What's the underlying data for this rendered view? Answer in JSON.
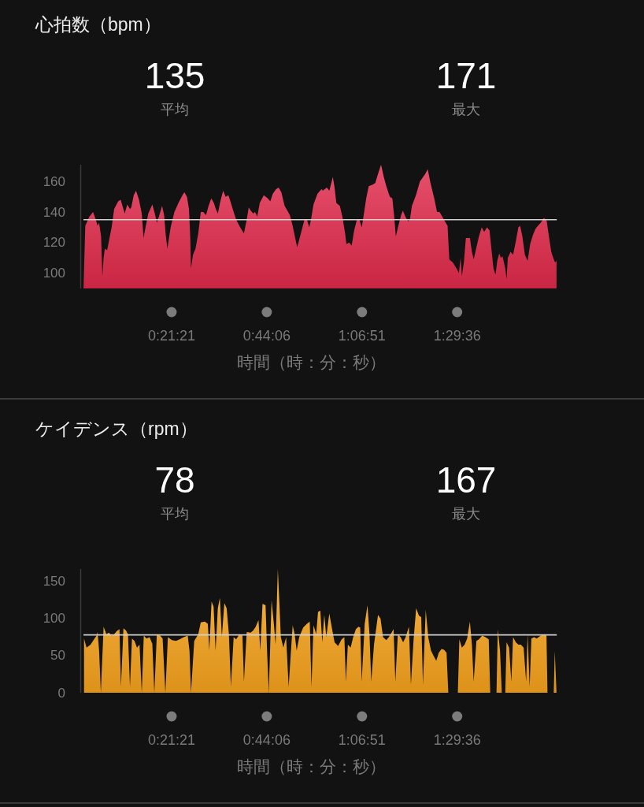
{
  "chart_data": [
    {
      "type": "area",
      "title": "心拍数（bpm）",
      "xlabel": "時間（時：分：秒）",
      "annotations": [
        "135",
        "平均",
        "171",
        "最大"
      ],
      "x": [
        0.005,
        0.012,
        0.028,
        0.043,
        0.054,
        0.061,
        0.067,
        0.075,
        0.08,
        0.085,
        0.09,
        0.099,
        0.106,
        0.117,
        0.127,
        0.143,
        0.153,
        0.162,
        0.169,
        0.179,
        0.19,
        0.195,
        0.205,
        0.214,
        0.226,
        0.237,
        0.244,
        0.252,
        0.263,
        0.279,
        0.289,
        0.297,
        0.305,
        0.318,
        0.326,
        0.333,
        0.339,
        0.352,
        0.367,
        0.383,
        0.399,
        0.407,
        0.417,
        0.425,
        0.43,
        0.433,
        0.441,
        0.451,
        0.462,
        0.472,
        0.482,
        0.493,
        0.503,
        0.514,
        0.524,
        0.532,
        0.54,
        0.55,
        0.561,
        0.571,
        0.582,
        0.592,
        0.603,
        0.613,
        0.629,
        0.644,
        0.655,
        0.663,
        0.671,
        0.681,
        0.688,
        0.697,
        0.707,
        0.723,
        0.739,
        0.749,
        0.759,
        0.772,
        0.782,
        0.793,
        0.806,
        0.817,
        0.827,
        0.838,
        0.848,
        0.856,
        0.869,
        0.885,
        0.895,
        0.904,
        0.911,
        0.921,
        0.937,
        0.953,
        0.958,
        0.974,
        0.984,
        0.992,
        0.998,
        1.005,
        1.012,
        1.026,
        1.036,
        1.047,
        1.052,
        1.063,
        1.073,
        1.083,
        1.094,
        1.104,
        1.113,
        1.12,
        1.131,
        1.141,
        1.157,
        1.167,
        1.178,
        1.19,
        1.201,
        1.211,
        1.225,
        1.235,
        1.242,
        1.249,
        1.259,
        1.27,
        1.277,
        1.287,
        1.298,
        1.305,
        1.313,
        1.329,
        1.345,
        1.366,
        1.376,
        1.387,
        1.402,
        1.413,
        1.423,
        1.434,
        1.444,
        1.455,
        1.462,
        1.476,
        1.491,
        1.5,
        1.507,
        1.512,
        1.52,
        1.528,
        1.544,
        1.552,
        1.559,
        1.57,
        1.58,
        1.591,
        1.601,
        1.612,
        1.622,
        1.629,
        1.638,
        1.646,
        1.653,
        1.661,
        1.667,
        1.674,
        1.685,
        1.69,
        1.695,
        1.706,
        1.716,
        1.727,
        1.737,
        1.744,
        1.753,
        1.763,
        1.774,
        1.784,
        1.795,
        1.805,
        1.815,
        1.826,
        1.838,
        1.849,
        1.857,
        1.868,
        1.876,
        1.883,
        1.889
      ],
      "series": [
        {
          "color": "#e02a4a",
          "values": [
            90,
            131,
            137,
            140,
            135,
            131,
            133,
            124,
            98,
            110,
            116,
            115,
            121,
            130,
            142,
            147,
            148,
            143,
            139,
            145,
            142,
            143,
            151,
            154,
            148,
            139,
            123,
            130,
            139,
            145,
            139,
            133,
            137,
            144,
            138,
            124,
            116,
            130,
            140,
            146,
            151,
            153,
            150,
            142,
            124,
            103,
            112,
            116,
            126,
            140,
            140,
            138,
            144,
            149,
            146,
            142,
            139,
            147,
            154,
            150,
            151,
            146,
            140,
            135,
            130,
            126,
            135,
            143,
            141,
            139,
            140,
            137,
            146,
            151,
            149,
            147,
            152,
            155,
            156,
            153,
            144,
            141,
            138,
            131,
            123,
            117,
            125,
            135,
            135,
            130,
            135,
            145,
            152,
            155,
            154,
            156,
            154,
            159,
            163,
            156,
            146,
            144,
            137,
            126,
            119,
            120,
            118,
            128,
            135,
            135,
            130,
            137,
            149,
            157,
            158,
            159,
            165,
            171,
            163,
            157,
            150,
            149,
            138,
            124,
            131,
            138,
            141,
            137,
            134,
            135,
            144,
            151,
            160,
            165,
            168,
            159,
            149,
            140,
            140,
            137,
            134,
            131,
            109,
            107,
            103,
            100,
            110,
            98,
            107,
            123,
            123,
            114,
            109,
            117,
            124,
            130,
            127,
            130,
            128,
            117,
            103,
            99,
            108,
            113,
            110,
            111,
            103,
            96,
            110,
            114,
            112,
            121,
            130,
            131,
            124,
            112,
            108,
            119,
            125,
            129,
            131,
            133,
            136,
            135,
            126,
            114,
            110,
            107,
            108
          ]
        }
      ],
      "xlim": [
        0,
        1.89
      ],
      "ylim": [
        90,
        171
      ],
      "xticks": [
        {
          "value": 0.355833,
          "label": "0:21:21"
        },
        {
          "value": 0.735,
          "label": "0:44:06"
        },
        {
          "value": 1.114167,
          "label": "1:06:51"
        },
        {
          "value": 1.493333,
          "label": "1:29:36"
        }
      ],
      "yticks": [
        100,
        120,
        140,
        160
      ],
      "ref_lines": [
        {
          "axis": "y",
          "value": 135,
          "color": "#d0d0d0"
        }
      ]
    },
    {
      "type": "area",
      "title": "ケイデンス（rpm）",
      "xlabel": "時間（時：分：秒）",
      "annotations": [
        "78",
        "平均",
        "167",
        "最大"
      ],
      "x": [
        0.007,
        0.017,
        0.033,
        0.049,
        0.057,
        0.061,
        0.067,
        0.074,
        0.085,
        0.096,
        0.106,
        0.117,
        0.127,
        0.137,
        0.148,
        0.154,
        0.164,
        0.174,
        0.182,
        0.19,
        0.198,
        0.208,
        0.218,
        0.228,
        0.237,
        0.245,
        0.256,
        0.268,
        0.279,
        0.287,
        0.297,
        0.31,
        0.32,
        0.331,
        0.341,
        0.357,
        0.373,
        0.388,
        0.404,
        0.42,
        0.427,
        0.433,
        0.446,
        0.462,
        0.472,
        0.488,
        0.5,
        0.506,
        0.515,
        0.523,
        0.531,
        0.54,
        0.548,
        0.556,
        0.566,
        0.575,
        0.584,
        0.592,
        0.603,
        0.613,
        0.626,
        0.638,
        0.644,
        0.655,
        0.671,
        0.681,
        0.691,
        0.702,
        0.709,
        0.718,
        0.73,
        0.736,
        0.743,
        0.754,
        0.763,
        0.77,
        0.779,
        0.791,
        0.801,
        0.812,
        0.822,
        0.838,
        0.846,
        0.854,
        0.864,
        0.88,
        0.895,
        0.906,
        0.913,
        0.921,
        0.932,
        0.939,
        0.948,
        0.956,
        0.964,
        0.972,
        0.984,
        0.995,
        1.005,
        1.019,
        1.033,
        1.044,
        1.05,
        1.058,
        1.069,
        1.079,
        1.09,
        1.1,
        1.107,
        1.113,
        1.125,
        1.136,
        1.144,
        1.151,
        1.162,
        1.178,
        1.188,
        1.198,
        1.211,
        1.221,
        1.232,
        1.24,
        1.247,
        1.257,
        1.268,
        1.278,
        1.288,
        1.301,
        1.309,
        1.32,
        1.33,
        1.341,
        1.35,
        1.357,
        1.368,
        1.378,
        1.389,
        1.399,
        1.41,
        1.42,
        1.431,
        1.441,
        1.451,
        1.458,
        1.496,
        1.502,
        1.512,
        1.523,
        1.533,
        1.544,
        1.552,
        1.559,
        1.57,
        1.58,
        1.593,
        1.606,
        1.619,
        1.625,
        1.65,
        1.655,
        1.664,
        1.671,
        1.685,
        1.69,
        1.7,
        1.709,
        1.716,
        1.727,
        1.737,
        1.747,
        1.758,
        1.768,
        1.774,
        1.782,
        1.789,
        1.8,
        1.81,
        1.826,
        1.842,
        1.849,
        1.853,
        1.878,
        1.882,
        1.889
      ],
      "series": [
        {
          "color": "#f5a21c",
          "values": [
            73,
            61,
            65,
            73,
            77,
            82,
            57,
            0,
            89,
            79,
            81,
            77,
            79,
            83,
            86,
            8,
            87,
            84,
            79,
            8,
            73,
            70,
            61,
            65,
            0,
            77,
            73,
            75,
            66,
            0,
            79,
            77,
            73,
            0,
            75,
            71,
            70,
            72,
            75,
            77,
            57,
            0,
            70,
            79,
            95,
            96,
            93,
            57,
            123,
            116,
            57,
            114,
            128,
            75,
            121,
            114,
            79,
            8,
            75,
            72,
            79,
            77,
            15,
            82,
            81,
            84,
            89,
            98,
            57,
            120,
            118,
            57,
            0,
            125,
            93,
            65,
            167,
            75,
            61,
            75,
            8,
            91,
            79,
            57,
            75,
            88,
            93,
            96,
            8,
            91,
            79,
            109,
            111,
            68,
            105,
            75,
            107,
            86,
            68,
            63,
            72,
            75,
            15,
            65,
            61,
            75,
            86,
            89,
            88,
            15,
            93,
            118,
            79,
            15,
            65,
            105,
            100,
            75,
            71,
            75,
            81,
            86,
            15,
            79,
            75,
            68,
            75,
            89,
            11,
            73,
            114,
            104,
            102,
            11,
            112,
            75,
            57,
            50,
            43,
            54,
            59,
            58,
            54,
            0,
            0,
            72,
            61,
            65,
            73,
            96,
            65,
            15,
            70,
            72,
            77,
            75,
            72,
            0,
            0,
            86,
            57,
            0,
            0,
            68,
            61,
            15,
            75,
            68,
            65,
            65,
            61,
            15,
            79,
            8,
            73,
            75,
            73,
            77,
            79,
            77,
            0,
            0,
            56,
            0
          ]
        }
      ],
      "xlim": [
        0,
        1.89
      ],
      "ylim": [
        0,
        167
      ],
      "xticks": [
        {
          "value": 0.355833,
          "label": "0:21:21"
        },
        {
          "value": 0.735,
          "label": "0:44:06"
        },
        {
          "value": 1.114167,
          "label": "1:06:51"
        },
        {
          "value": 1.493333,
          "label": "1:29:36"
        }
      ],
      "yticks": [
        0,
        50,
        100,
        150
      ],
      "ref_lines": [
        {
          "axis": "y",
          "value": 78,
          "color": "#d0d0d0"
        }
      ]
    }
  ]
}
